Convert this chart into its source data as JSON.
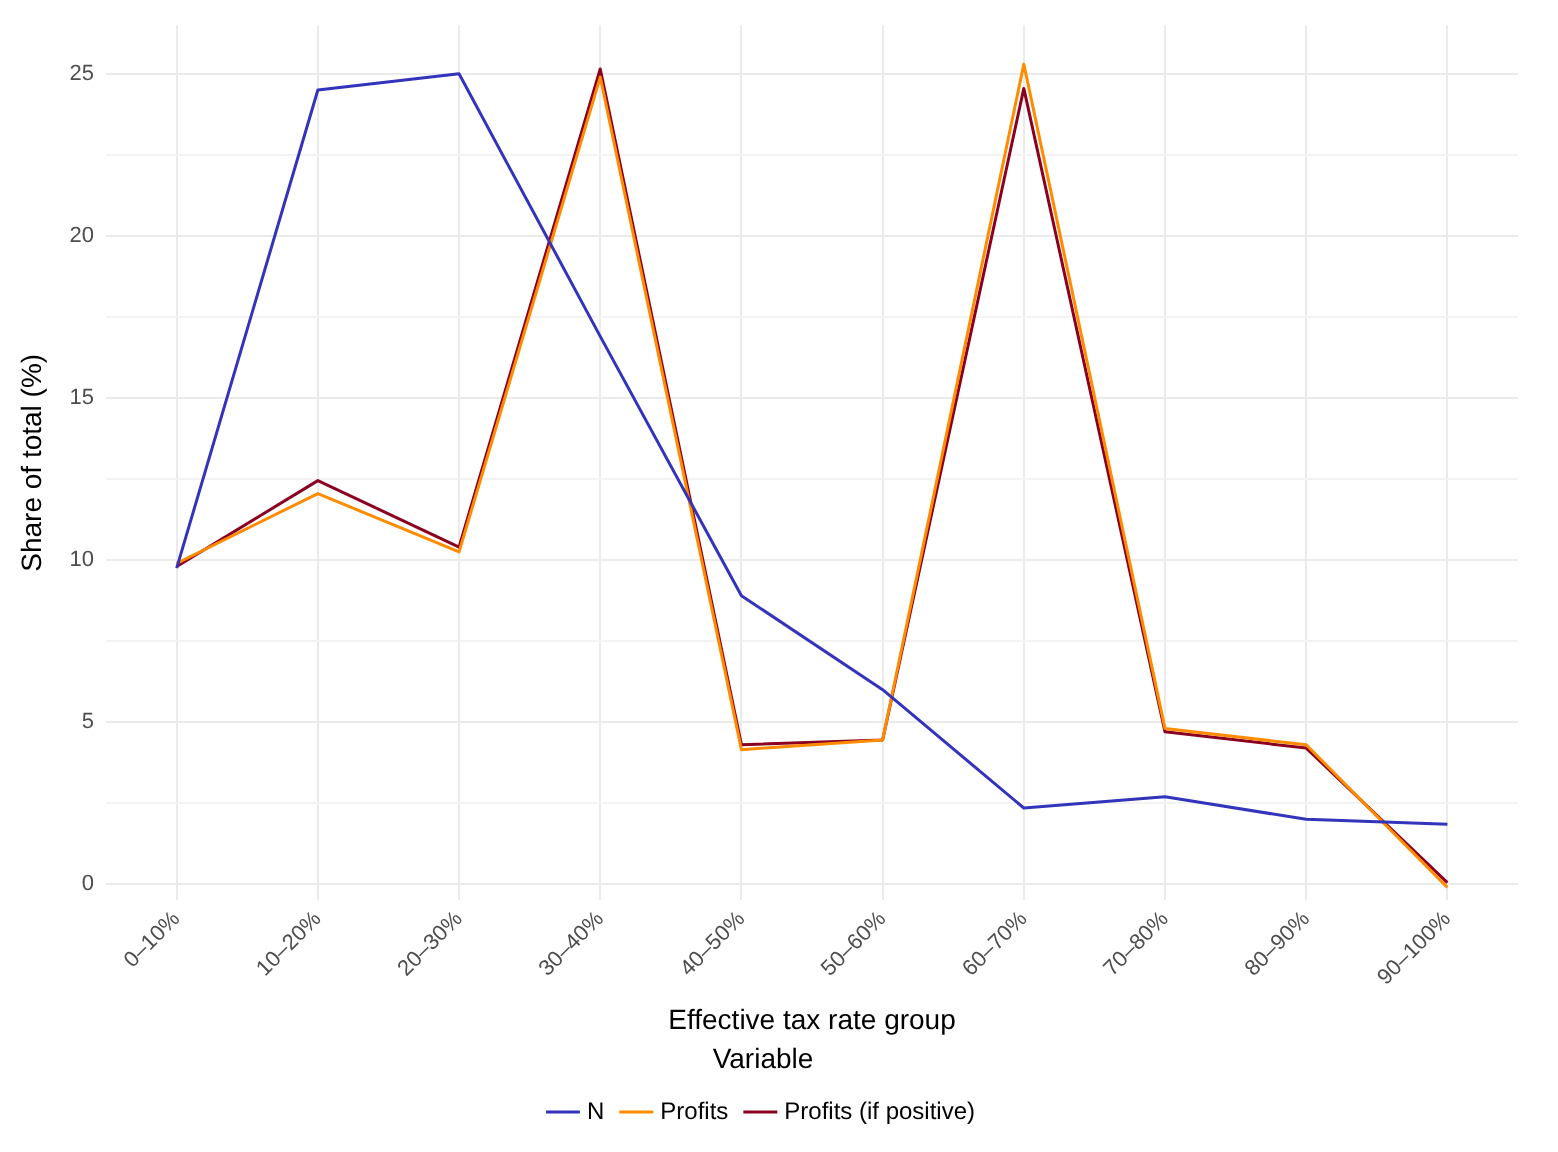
{
  "chart_data": {
    "type": "line",
    "xlabel": "Effective tax rate group",
    "ylabel": "Share of total (%)",
    "legend_title": "Variable",
    "categories": [
      "0–10%",
      "10–20%",
      "20–30%",
      "30–40%",
      "40–50%",
      "50–60%",
      "60–70%",
      "70–80%",
      "80–90%",
      "90–100%"
    ],
    "series": [
      {
        "name": "N",
        "color": "#3333bb",
        "values": [
          9.75,
          24.5,
          25.0,
          16.9,
          8.9,
          6.0,
          2.35,
          2.7,
          2.0,
          1.85
        ]
      },
      {
        "name": "Profits",
        "color": "#ff8c00",
        "values": [
          9.9,
          12.05,
          10.25,
          24.9,
          4.15,
          4.45,
          25.3,
          4.8,
          4.3,
          -0.1
        ]
      },
      {
        "name": "Profits (if positive)",
        "color": "#8b0020",
        "values": [
          9.8,
          12.45,
          10.4,
          25.15,
          4.3,
          4.45,
          24.55,
          4.7,
          4.2,
          0.05
        ]
      }
    ],
    "ylim": [
      -0.5,
      26.5
    ],
    "yticks": [
      0,
      {
        "value": 2.5,
        "label": null
      },
      5,
      {
        "value": 7.5,
        "label": null
      },
      10,
      {
        "value": 12.5,
        "label": null
      },
      15,
      {
        "value": 17.5,
        "label": null
      },
      20,
      {
        "value": 22.5,
        "label": null
      },
      25
    ],
    "grid": true,
    "legend": "bottom",
    "marker": "none",
    "line_style": "solid"
  }
}
